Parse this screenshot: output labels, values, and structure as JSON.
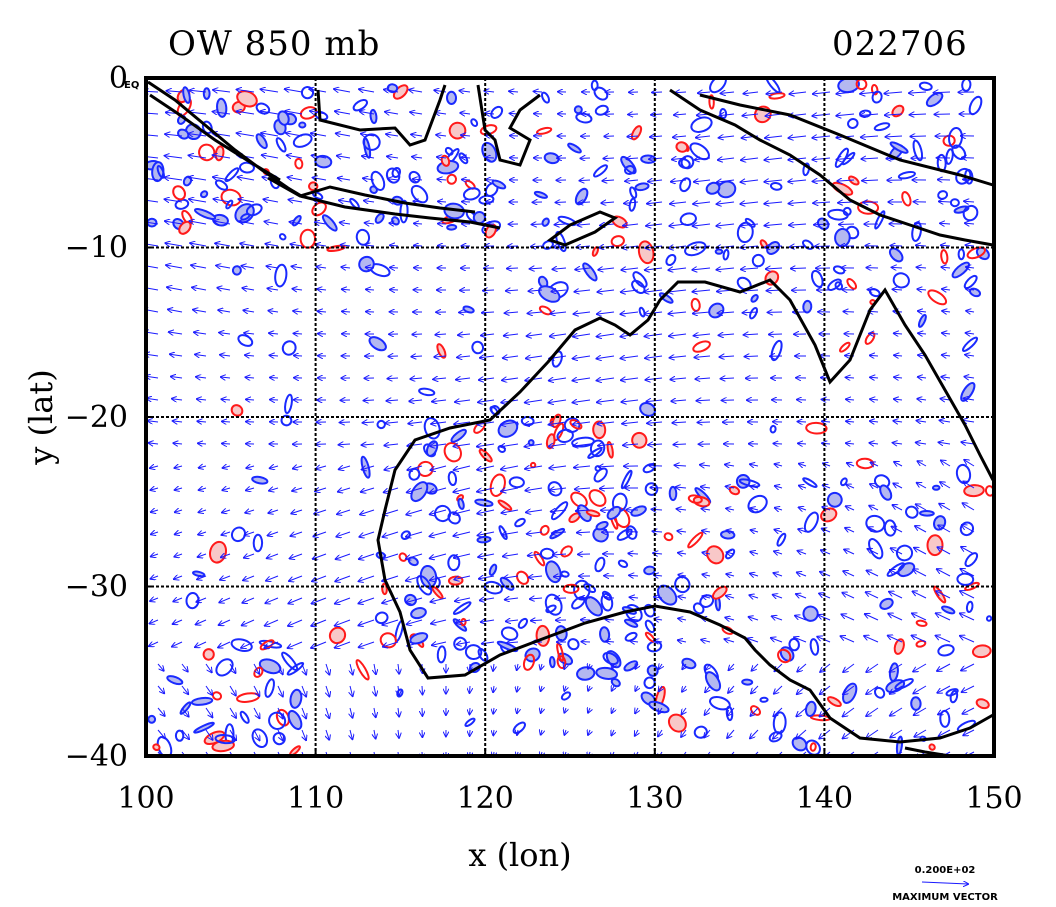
{
  "map": {
    "title_left": "OW 850 mb",
    "title_right": "022706",
    "xlabel": "x (lon)",
    "ylabel": "y (lat)",
    "corner_label": "EQ",
    "x_range": [
      100,
      150
    ],
    "y_range": [
      -40,
      0
    ],
    "x_ticks": [
      {
        "value": 100,
        "label": "100"
      },
      {
        "value": 110,
        "label": "110"
      },
      {
        "value": 120,
        "label": "120"
      },
      {
        "value": 130,
        "label": "130"
      },
      {
        "value": 140,
        "label": "140"
      },
      {
        "value": 150,
        "label": "150"
      }
    ],
    "y_ticks": [
      {
        "value": 0,
        "label": "0"
      },
      {
        "value": -10,
        "label": "−10"
      },
      {
        "value": -20,
        "label": "−20"
      },
      {
        "value": -30,
        "label": "−30"
      },
      {
        "value": -40,
        "label": "−40"
      }
    ],
    "grid_lon": [
      110,
      120,
      130,
      140
    ],
    "grid_lat": [
      -10,
      -20,
      -30
    ],
    "max_vector_value": "0.200E+02",
    "max_vector_label": "MAXIMUM VECTOR",
    "colors": {
      "coast": "#000000",
      "vector": "#1a1aff",
      "positive_contour": "#ff1a1a",
      "positive_fill": "#f8c8c8",
      "negative_contour": "#1a2aff",
      "negative_fill": "#b4b8f0",
      "grid": "#000000"
    }
  }
}
